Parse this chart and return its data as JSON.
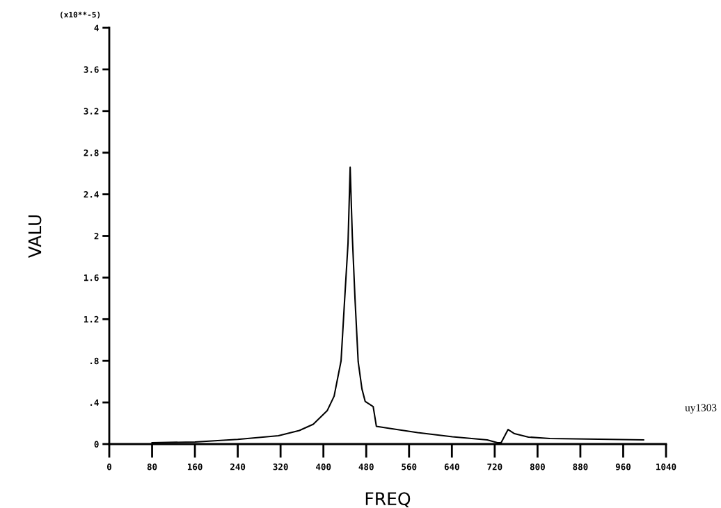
{
  "chart_data": {
    "type": "line",
    "xlabel": "FREQ",
    "ylabel": "VALU",
    "annotations": [
      "(x10**-5)",
      "uy1303"
    ],
    "x": [
      80,
      160,
      240,
      316,
      355,
      381,
      407,
      420,
      433,
      439,
      446,
      450,
      454,
      459,
      465,
      472,
      478,
      493,
      499,
      524,
      576,
      641,
      706,
      725,
      732,
      745,
      757,
      783,
      823,
      914,
      998
    ],
    "series": [
      {
        "color": "#000000",
        "values": [
          0.013,
          0.02,
          0.045,
          0.08,
          0.13,
          0.19,
          0.32,
          0.46,
          0.8,
          1.33,
          1.93,
          2.66,
          2.0,
          1.4,
          0.79,
          0.53,
          0.41,
          0.36,
          0.17,
          0.15,
          0.11,
          0.07,
          0.04,
          0.013,
          0.013,
          0.14,
          0.1,
          0.067,
          0.053,
          0.047,
          0.04
        ]
      }
    ],
    "xlim": [
      0,
      1040
    ],
    "ylim": [
      0,
      4
    ],
    "xticks": [
      0,
      80,
      160,
      240,
      320,
      400,
      480,
      560,
      640,
      720,
      800,
      880,
      960,
      1040
    ],
    "yticks": [
      0,
      {
        "value": 0.4,
        "label": ".4"
      },
      {
        "value": 0.8,
        "label": ".8"
      },
      1.2,
      1.6,
      2,
      2.4,
      2.8,
      3.2,
      3.6,
      4
    ],
    "grid": false,
    "legend": false,
    "marker": "none",
    "line_style": "solid"
  }
}
